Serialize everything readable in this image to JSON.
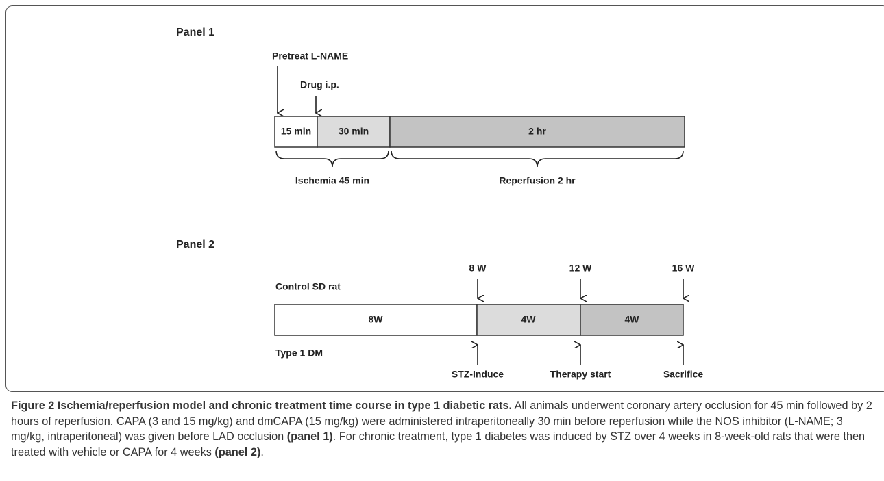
{
  "panel1": {
    "label": "Panel 1",
    "pretreat": "Pretreat L-NAME",
    "drug": "Drug i.p.",
    "segments": [
      "15 min",
      "30 min",
      "2 hr"
    ],
    "braces": [
      "Ischemia 45 min",
      "Reperfusion 2 hr"
    ]
  },
  "panel2": {
    "label": "Panel 2",
    "control": "Control SD rat",
    "diabetic": "Type 1 DM",
    "weeks": [
      "8 W",
      "12 W",
      "16 W"
    ],
    "segments": [
      "8W",
      "4W",
      "4W"
    ],
    "events": [
      "STZ-Induce",
      "Therapy start",
      "Sacrifice"
    ]
  },
  "caption": {
    "title": "Figure 2 Ischemia/reperfusion model and chronic treatment time course in type 1 diabetic rats.",
    "text1": " All animals underwent coronary artery occlusion for 45 min followed by 2 hours of reperfusion. CAPA (3 and 15 mg/kg) and dmCAPA (15 mg/kg) were administered intraperitoneally 30 min before reperfusion while the NOS inhibitor (L-NAME; 3 mg/kg, intraperitoneal) was given before LAD occlusion ",
    "bold1": "(panel 1)",
    "text2": ". For chronic treatment, type 1 diabetes was induced by STZ over 4 weeks in 8-week-old rats that were then treated with vehicle or CAPA for 4 weeks ",
    "bold2": "(panel 2)",
    "text3": "."
  }
}
